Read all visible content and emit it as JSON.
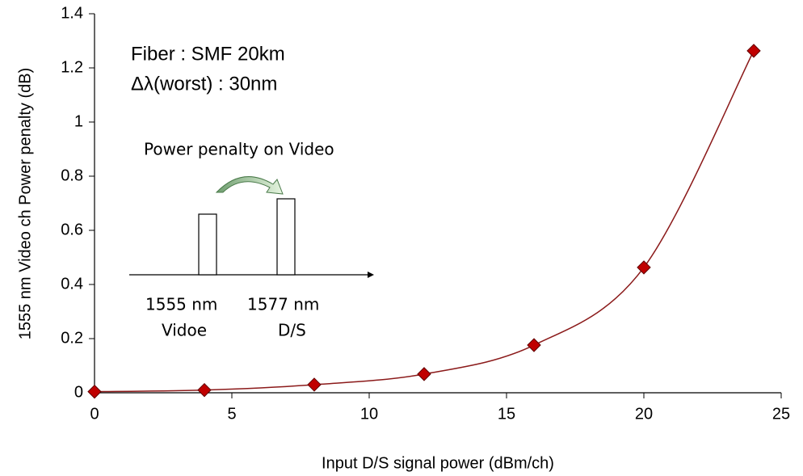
{
  "chart_data": {
    "type": "scatter",
    "x_label": "Input D/S signal power (dBm/ch)",
    "y_label": "1555 nm Video ch Power penalty (dB)",
    "series": [
      {
        "name": "Power penalty",
        "color": "#c00000",
        "line_color": "#8b1a1a",
        "x": [
          0,
          4,
          8,
          12,
          16,
          20,
          24
        ],
        "values": [
          0.004,
          0.01,
          0.03,
          0.069,
          0.176,
          0.463,
          1.263
        ]
      }
    ],
    "xlim": [
      0,
      25
    ],
    "xticks": [
      0,
      5,
      10,
      15,
      20,
      25
    ],
    "ylim": [
      0,
      1.4
    ],
    "yticks": [
      0,
      0.2,
      0.4,
      0.6,
      0.8,
      1,
      1.2,
      1.4
    ],
    "smooth": true,
    "grid": false,
    "annotations": [
      "Fiber :  SMF 20km",
      "Δλ(worst) : 30nm",
      "Power penalty on Video",
      "1555 nm",
      "Vidoe",
      "1577 nm",
      "D/S"
    ]
  }
}
